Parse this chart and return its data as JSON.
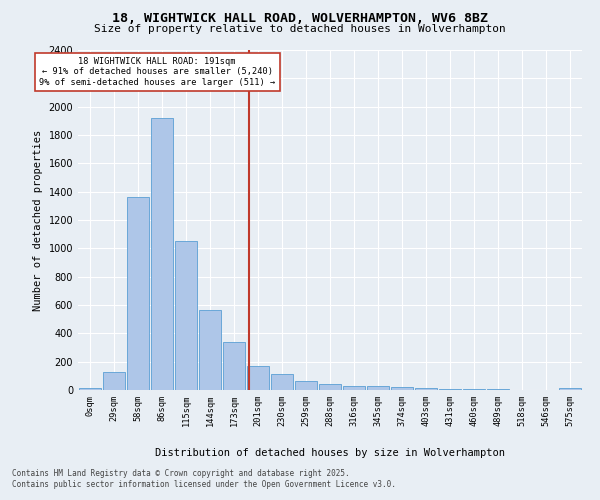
{
  "title1": "18, WIGHTWICK HALL ROAD, WOLVERHAMPTON, WV6 8BZ",
  "title2": "Size of property relative to detached houses in Wolverhampton",
  "xlabel": "Distribution of detached houses by size in Wolverhampton",
  "ylabel": "Number of detached properties",
  "footer1": "Contains HM Land Registry data © Crown copyright and database right 2025.",
  "footer2": "Contains public sector information licensed under the Open Government Licence v3.0.",
  "annotation_line1": "18 WIGHTWICK HALL ROAD: 191sqm",
  "annotation_line2": "← 91% of detached houses are smaller (5,240)",
  "annotation_line3": "9% of semi-detached houses are larger (511) →",
  "property_size": 191,
  "bar_labels": [
    "0sqm",
    "29sqm",
    "58sqm",
    "86sqm",
    "115sqm",
    "144sqm",
    "173sqm",
    "201sqm",
    "230sqm",
    "259sqm",
    "288sqm",
    "316sqm",
    "345sqm",
    "374sqm",
    "403sqm",
    "431sqm",
    "460sqm",
    "489sqm",
    "518sqm",
    "546sqm",
    "575sqm"
  ],
  "bar_values": [
    15,
    125,
    1360,
    1920,
    1055,
    565,
    340,
    170,
    115,
    62,
    40,
    30,
    25,
    20,
    13,
    5,
    5,
    5,
    3,
    2,
    15
  ],
  "bar_color": "#aec6e8",
  "bar_edge_color": "#5a9fd4",
  "vline_color": "#c0392b",
  "background_color": "#e8eef4",
  "plot_bg_color": "#e8eef4",
  "annotation_box_color": "#ffffff",
  "annotation_box_edge": "#c0392b",
  "ylim": [
    0,
    2400
  ],
  "yticks": [
    0,
    200,
    400,
    600,
    800,
    1000,
    1200,
    1400,
    1600,
    1800,
    2000,
    2200,
    2400
  ]
}
